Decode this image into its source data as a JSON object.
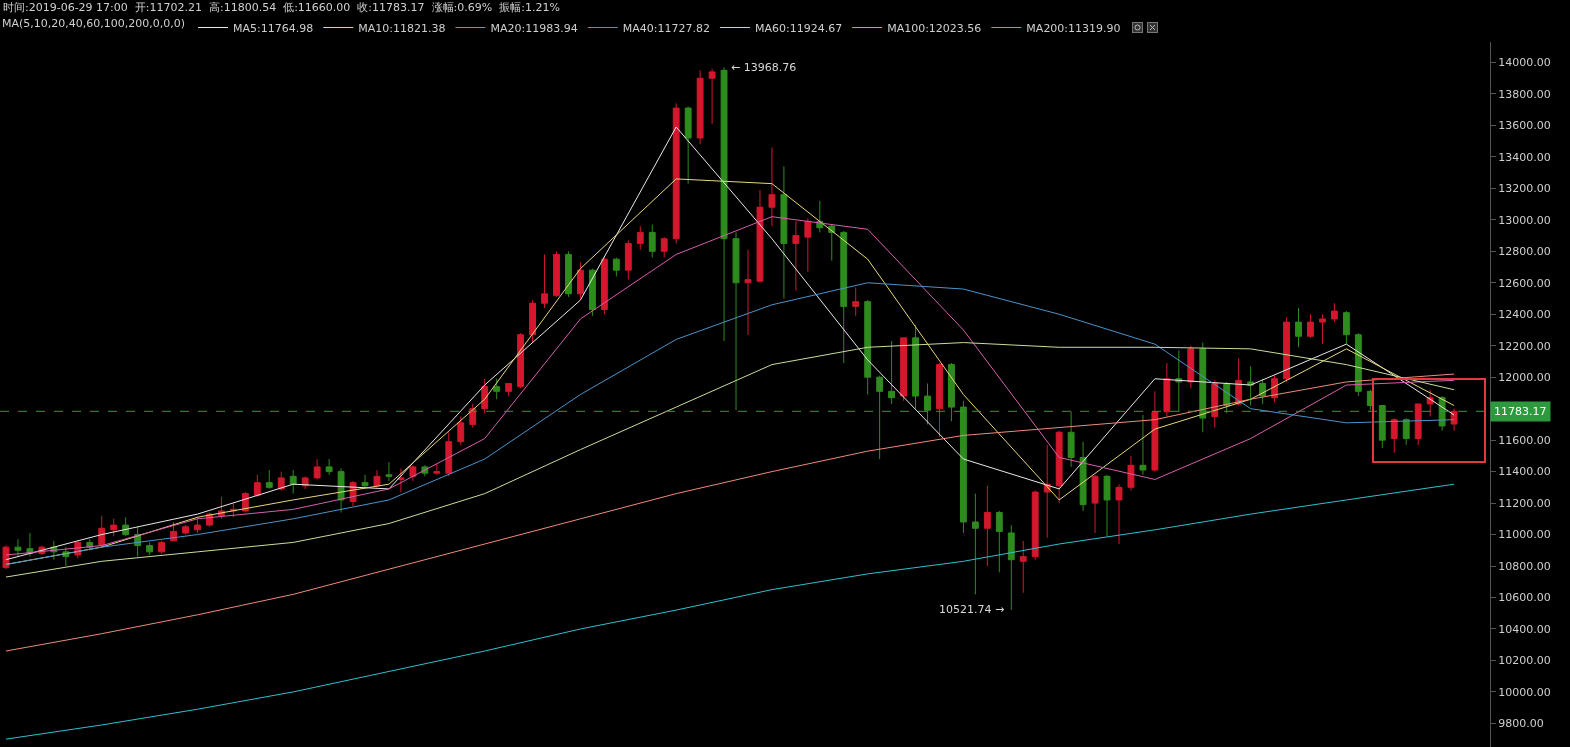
{
  "chart_data": {
    "type": "candlestick",
    "title": "时间:2019-06-29 17:00  开:11702.21  高:11800.54  低:11660.00  收:11783.17  涨幅:0.69%  振幅:1.21%",
    "legend_title": "MA(5,10,20,40,60,100,200,0,0,0)",
    "legend": "top left",
    "tick_labels": "y",
    "categories": [
      null,
      null,
      null,
      null,
      null,
      null,
      null,
      null,
      null,
      null,
      null,
      null,
      null,
      null,
      null,
      null,
      null,
      null,
      null,
      null,
      null,
      null,
      null,
      null,
      null,
      null,
      null,
      null,
      null,
      null,
      null,
      null,
      null,
      null,
      null,
      null,
      null,
      null,
      null,
      null,
      null,
      null,
      null,
      null,
      null,
      null,
      null,
      null,
      null,
      null,
      null,
      null,
      null,
      null,
      null,
      null,
      null,
      null,
      null,
      null,
      null,
      null,
      null,
      null,
      null,
      null,
      null,
      null,
      null,
      null,
      null,
      null,
      null,
      null,
      null,
      null,
      null,
      null,
      null,
      null,
      null,
      null,
      null,
      null,
      null,
      null,
      null,
      null,
      null,
      null,
      null,
      null,
      null,
      null,
      null,
      null,
      null,
      null,
      null,
      null,
      null,
      null,
      null,
      null,
      null,
      null,
      null,
      null,
      null,
      null,
      null,
      null,
      null,
      null,
      null,
      null,
      null,
      null,
      null,
      null,
      null,
      null
    ],
    "colors": [
      "#d3172d",
      "#2e8c1e",
      "#2e8c1e",
      "#d3172d",
      "#2e8c1e",
      "#2e8c1e",
      "#d3172d",
      "#2e8c1e",
      "#d3172d",
      "#d3172d",
      "#2e8c1e",
      "#2e8c1e",
      "#2e8c1e",
      "#d3172d",
      "#d3172d",
      "#d3172d",
      "#d3172d",
      "#d3172d",
      "#d3172d",
      "#d3172d",
      "#d3172d",
      "#d3172d",
      "#2e8c1e",
      "#d3172d",
      "#2e8c1e",
      "#d3172d",
      "#d3172d",
      "#2e8c1e",
      "#2e8c1e",
      "#d3172d",
      "#2e8c1e",
      "#d3172d",
      "#2e8c1e",
      "#d3172d",
      "#d3172d",
      "#2e8c1e",
      "#d3172d",
      "#d3172d",
      "#d3172d",
      "#d3172d",
      "#d3172d",
      "#2e8c1e",
      "#d3172d",
      "#d3172d",
      "#d3172d",
      "#d3172d",
      "#d3172d",
      "#2e8c1e",
      "#d3172d",
      "#2e8c1e",
      "#d3172d",
      "#2e8c1e",
      "#d3172d",
      "#d3172d",
      "#2e8c1e",
      "#d3172d",
      "#d3172d",
      "#2e8c1e",
      "#d3172d",
      "#d3172d",
      "#2e8c1e",
      "#2e8c1e",
      "#d3172d",
      "#d3172d",
      "#d3172d",
      "#2e8c1e",
      "#d3172d",
      "#d3172d",
      "#2e8c1e",
      "#2e8c1e",
      "#2e8c1e",
      "#d3172d",
      "#2e8c1e",
      "#2e8c1e",
      "#2e8c1e",
      "#d3172d",
      "#2e8c1e",
      "#2e8c1e",
      "#d3172d",
      "#2e8c1e",
      "#2e8c1e",
      "#2e8c1e",
      "#d3172d",
      "#2e8c1e",
      "#2e8c1e",
      "#d3172d",
      "#d3172d",
      "#d3172d",
      "#d3172d",
      "#2e8c1e",
      "#2e8c1e",
      "#d3172d",
      "#2e8c1e",
      "#d3172d",
      "#d3172d",
      "#2e8c1e",
      "#d3172d",
      "#d3172d",
      "#2e8c1e",
      "#d3172d",
      "#2e8c1e",
      "#d3172d",
      "#2e8c1e",
      "#d3172d",
      "#2e8c1e",
      "#2e8c1e",
      "#d3172d",
      "#d3172d",
      "#2e8c1e",
      "#d3172d",
      "#d3172d",
      "#d3172d",
      "#2e8c1e",
      "#2e8c1e",
      "#2e8c1e",
      "#2e8c1e",
      "#d3172d",
      "#2e8c1e",
      "#d3172d",
      "#d3172d",
      "#2e8c1e",
      "#d3172d"
    ],
    "ohlc": [
      [
        10790,
        10930,
        10780,
        10920
      ],
      [
        10920,
        10970,
        10860,
        10900
      ],
      [
        10910,
        11010,
        10860,
        10880
      ],
      [
        10880,
        10930,
        10870,
        10920
      ],
      [
        10920,
        10960,
        10840,
        10890
      ],
      [
        10890,
        10920,
        10800,
        10860
      ],
      [
        10870,
        10960,
        10850,
        10950
      ],
      [
        10950,
        10970,
        10900,
        10920
      ],
      [
        10930,
        11120,
        10920,
        11040
      ],
      [
        11030,
        11100,
        10990,
        11060
      ],
      [
        11060,
        11110,
        10990,
        11000
      ],
      [
        11000,
        11050,
        10860,
        10930
      ],
      [
        10930,
        10950,
        10870,
        10890
      ],
      [
        10890,
        10960,
        10880,
        10950
      ],
      [
        10960,
        11080,
        10960,
        11020
      ],
      [
        11010,
        11060,
        11000,
        11050
      ],
      [
        11030,
        11110,
        11010,
        11060
      ],
      [
        11060,
        11140,
        11050,
        11130
      ],
      [
        11120,
        11240,
        11100,
        11150
      ],
      [
        11150,
        11200,
        11110,
        11160
      ],
      [
        11150,
        11270,
        11140,
        11260
      ],
      [
        11250,
        11380,
        11240,
        11330
      ],
      [
        11330,
        11410,
        11290,
        11300
      ],
      [
        11290,
        11400,
        11280,
        11360
      ],
      [
        11370,
        11410,
        11260,
        11320
      ],
      [
        11310,
        11370,
        11290,
        11360
      ],
      [
        11360,
        11480,
        11350,
        11430
      ],
      [
        11430,
        11480,
        11380,
        11400
      ],
      [
        11400,
        11420,
        11140,
        11220
      ],
      [
        11210,
        11340,
        11180,
        11330
      ],
      [
        11330,
        11380,
        11290,
        11310
      ],
      [
        11310,
        11410,
        11300,
        11370
      ],
      [
        11380,
        11460,
        11340,
        11370
      ],
      [
        11350,
        11420,
        11270,
        11360
      ],
      [
        11370,
        11440,
        11340,
        11430
      ],
      [
        11430,
        11440,
        11370,
        11390
      ],
      [
        11390,
        11450,
        11380,
        11400
      ],
      [
        11390,
        11650,
        11370,
        11590
      ],
      [
        11590,
        11750,
        11570,
        11710
      ],
      [
        11700,
        11830,
        11680,
        11800
      ],
      [
        11800,
        11990,
        11770,
        11940
      ],
      [
        11940,
        11990,
        11860,
        11910
      ],
      [
        11910,
        11960,
        11880,
        11960
      ],
      [
        11940,
        12280,
        11930,
        12270
      ],
      [
        12270,
        12490,
        12220,
        12470
      ],
      [
        12470,
        12780,
        12440,
        12530
      ],
      [
        12520,
        12800,
        12510,
        12780
      ],
      [
        12780,
        12800,
        12510,
        12530
      ],
      [
        12530,
        12730,
        12500,
        12680
      ],
      [
        12680,
        12690,
        12390,
        12430
      ],
      [
        12430,
        12760,
        12400,
        12750
      ],
      [
        12750,
        12760,
        12640,
        12680
      ],
      [
        12680,
        12870,
        12620,
        12850
      ],
      [
        12850,
        12960,
        12810,
        12920
      ],
      [
        12920,
        12970,
        12760,
        12800
      ],
      [
        12800,
        12890,
        12760,
        12880
      ],
      [
        12880,
        13740,
        12850,
        13710
      ],
      [
        13710,
        13720,
        13230,
        13520
      ],
      [
        13520,
        13950,
        13480,
        13900
      ],
      [
        13900,
        13960,
        13610,
        13940
      ],
      [
        13950,
        13968.76,
        12230,
        12880
      ],
      [
        12880,
        12920,
        11790,
        12600
      ],
      [
        12600,
        12810,
        12270,
        12620
      ],
      [
        12610,
        13190,
        12600,
        13080
      ],
      [
        13080,
        13460,
        12960,
        13160
      ],
      [
        13160,
        13340,
        12500,
        12850
      ],
      [
        12850,
        12990,
        12550,
        12900
      ],
      [
        12890,
        13010,
        12670,
        12990
      ],
      [
        12990,
        13120,
        12920,
        12950
      ],
      [
        12960,
        12970,
        12740,
        12920
      ],
      [
        12920,
        12930,
        12090,
        12450
      ],
      [
        12450,
        12570,
        12390,
        12480
      ],
      [
        12480,
        12490,
        11890,
        12000
      ],
      [
        12000,
        12010,
        11480,
        11910
      ],
      [
        11910,
        12230,
        11830,
        11870
      ],
      [
        11880,
        12250,
        11850,
        12250
      ],
      [
        12250,
        12330,
        11800,
        11880
      ],
      [
        11880,
        11960,
        11700,
        11790
      ],
      [
        11800,
        12090,
        11620,
        12080
      ],
      [
        12080,
        12090,
        11720,
        11810
      ],
      [
        11810,
        11850,
        11010,
        11080
      ],
      [
        11080,
        11260,
        10620,
        11040
      ],
      [
        11040,
        11310,
        10800,
        11140
      ],
      [
        11140,
        11150,
        10760,
        11020
      ],
      [
        11010,
        11060,
        10521.74,
        10840
      ],
      [
        10830,
        10960,
        10630,
        10860
      ],
      [
        10860,
        11280,
        10840,
        11270
      ],
      [
        11270,
        11570,
        10980,
        11320
      ],
      [
        11310,
        11660,
        11200,
        11650
      ],
      [
        11650,
        11780,
        11430,
        11490
      ],
      [
        11490,
        11590,
        11150,
        11190
      ],
      [
        11200,
        11380,
        11010,
        11370
      ],
      [
        11370,
        11380,
        10990,
        11220
      ],
      [
        11220,
        11320,
        10940,
        11300
      ],
      [
        11300,
        11500,
        11280,
        11440
      ],
      [
        11440,
        11760,
        11380,
        11410
      ],
      [
        11410,
        11910,
        11400,
        11780
      ],
      [
        11780,
        12090,
        11750,
        11990
      ],
      [
        11990,
        12170,
        11780,
        11970
      ],
      [
        11970,
        12200,
        11930,
        12180
      ],
      [
        12180,
        12220,
        11650,
        11740
      ],
      [
        11750,
        11980,
        11680,
        11960
      ],
      [
        11960,
        11970,
        11770,
        11820
      ],
      [
        11830,
        12120,
        11820,
        11980
      ],
      [
        11970,
        12070,
        11820,
        11950
      ],
      [
        11960,
        11990,
        11830,
        11880
      ],
      [
        11870,
        12010,
        11840,
        11990
      ],
      [
        11990,
        12380,
        11970,
        12350
      ],
      [
        12350,
        12440,
        12190,
        12260
      ],
      [
        12260,
        12400,
        12250,
        12350
      ],
      [
        12350,
        12400,
        12210,
        12370
      ],
      [
        12370,
        12470,
        12350,
        12420
      ],
      [
        12410,
        12420,
        12210,
        12270
      ],
      [
        12270,
        12280,
        11880,
        11910
      ],
      [
        11910,
        11920,
        11790,
        11820
      ],
      [
        11820,
        11820,
        11550,
        11600
      ],
      [
        11610,
        11740,
        11520,
        11730
      ],
      [
        11730,
        11740,
        11570,
        11610
      ],
      [
        11610,
        11830,
        11570,
        11830
      ],
      [
        11830,
        11920,
        11750,
        11870
      ],
      [
        11870,
        11880,
        11660,
        11690
      ],
      [
        11702.21,
        11800.54,
        11660.0,
        11783.17
      ]
    ],
    "series": [
      {
        "type": "line",
        "name": "MA5:11764.98",
        "color": "#e8e8e8",
        "values": [
          10840,
          null,
          null,
          null,
          null,
          null,
          null,
          null,
          11000,
          null,
          null,
          null,
          null,
          null,
          null,
          null,
          11130,
          null,
          null,
          null,
          null,
          null,
          null,
          null,
          11320,
          null,
          null,
          null,
          null,
          null,
          null,
          null,
          11290,
          null,
          null,
          null,
          null,
          null,
          null,
          null,
          11950,
          null,
          null,
          null,
          null,
          null,
          null,
          null,
          12490,
          null,
          null,
          null,
          null,
          null,
          null,
          null,
          13590,
          null,
          null,
          null,
          null,
          null,
          null,
          null,
          12880,
          null,
          null,
          null,
          null,
          null,
          null,
          null,
          12110,
          null,
          null,
          null,
          null,
          null,
          null,
          null,
          11480,
          null,
          null,
          null,
          null,
          null,
          null,
          null,
          11290,
          null,
          null,
          null,
          null,
          null,
          null,
          null,
          11990,
          null,
          null,
          null,
          null,
          null,
          null,
          null,
          11950,
          null,
          null,
          null,
          null,
          null,
          null,
          null,
          12210,
          null,
          null,
          null,
          null,
          null,
          null,
          null,
          null,
          11760
        ]
      },
      {
        "type": "line",
        "name": "MA10:11821.38",
        "color": "#e6d77a",
        "values": [
          10810,
          null,
          null,
          null,
          null,
          null,
          null,
          null,
          10920,
          null,
          null,
          null,
          null,
          null,
          null,
          null,
          11110,
          null,
          null,
          null,
          null,
          null,
          null,
          null,
          11220,
          null,
          null,
          null,
          null,
          null,
          null,
          null,
          11320,
          null,
          null,
          null,
          null,
          null,
          null,
          null,
          11860,
          null,
          null,
          null,
          null,
          null,
          null,
          null,
          12690,
          null,
          null,
          null,
          null,
          null,
          null,
          null,
          13260,
          null,
          null,
          null,
          null,
          null,
          null,
          null,
          13230,
          null,
          null,
          null,
          null,
          null,
          null,
          null,
          12750,
          null,
          null,
          null,
          null,
          null,
          null,
          null,
          11890,
          null,
          null,
          null,
          null,
          null,
          null,
          null,
          11220,
          null,
          null,
          null,
          null,
          null,
          null,
          null,
          11670,
          null,
          null,
          null,
          null,
          null,
          null,
          null,
          11860,
          null,
          null,
          null,
          null,
          null,
          null,
          null,
          12180,
          null,
          null,
          null,
          null,
          null,
          null,
          null,
          null,
          11820
        ]
      },
      {
        "type": "line",
        "name": "MA20:11983.94",
        "color": "#d45fae",
        "values": [
          10870,
          null,
          null,
          null,
          null,
          null,
          null,
          null,
          10930,
          null,
          null,
          null,
          null,
          null,
          null,
          null,
          11100,
          null,
          null,
          null,
          null,
          null,
          null,
          null,
          11160,
          null,
          null,
          null,
          null,
          null,
          null,
          null,
          11290,
          null,
          null,
          null,
          null,
          null,
          null,
          null,
          11610,
          null,
          null,
          null,
          null,
          null,
          null,
          null,
          12370,
          null,
          null,
          null,
          null,
          null,
          null,
          null,
          12780,
          null,
          null,
          null,
          null,
          null,
          null,
          null,
          13020,
          null,
          null,
          null,
          null,
          null,
          null,
          null,
          12940,
          null,
          null,
          null,
          null,
          null,
          null,
          null,
          12300,
          null,
          null,
          null,
          null,
          null,
          null,
          null,
          11490,
          null,
          null,
          null,
          null,
          null,
          null,
          null,
          11350,
          null,
          null,
          null,
          null,
          null,
          null,
          null,
          11610,
          null,
          null,
          null,
          null,
          null,
          null,
          null,
          11950,
          null,
          null,
          null,
          null,
          null,
          null,
          null,
          null,
          11980
        ]
      },
      {
        "type": "line",
        "name": "MA40:11727.82",
        "color": "#4b93c9",
        "values": [
          10810,
          null,
          null,
          null,
          null,
          null,
          null,
          null,
          10920,
          null,
          null,
          null,
          null,
          null,
          null,
          null,
          11000,
          null,
          null,
          null,
          null,
          null,
          null,
          null,
          11100,
          null,
          null,
          null,
          null,
          null,
          null,
          null,
          11220,
          null,
          null,
          null,
          null,
          null,
          null,
          null,
          11480,
          null,
          null,
          null,
          null,
          null,
          null,
          null,
          11890,
          null,
          null,
          null,
          null,
          null,
          null,
          null,
          12240,
          null,
          null,
          null,
          null,
          null,
          null,
          null,
          12460,
          null,
          null,
          null,
          null,
          null,
          null,
          null,
          12600,
          null,
          null,
          null,
          null,
          null,
          null,
          null,
          12560,
          null,
          null,
          null,
          null,
          null,
          null,
          null,
          12400,
          null,
          null,
          null,
          null,
          null,
          null,
          null,
          12210,
          null,
          null,
          null,
          null,
          null,
          null,
          null,
          11800,
          null,
          null,
          null,
          null,
          null,
          null,
          null,
          11710,
          null,
          null,
          null,
          null,
          null,
          null,
          null,
          null,
          11730
        ]
      },
      {
        "type": "line",
        "name": "MA60:11924.67",
        "color": "#c9dd9a",
        "values": [
          10730,
          null,
          null,
          null,
          null,
          null,
          null,
          null,
          10830,
          null,
          null,
          null,
          null,
          null,
          null,
          null,
          10890,
          null,
          null,
          null,
          null,
          null,
          null,
          null,
          10950,
          null,
          null,
          null,
          null,
          null,
          null,
          null,
          11070,
          null,
          null,
          null,
          null,
          null,
          null,
          null,
          11260,
          null,
          null,
          null,
          null,
          null,
          null,
          null,
          11540,
          null,
          null,
          null,
          null,
          null,
          null,
          null,
          11810,
          null,
          null,
          null,
          null,
          null,
          null,
          null,
          12080,
          null,
          null,
          null,
          null,
          null,
          null,
          null,
          12190,
          null,
          null,
          null,
          null,
          null,
          null,
          null,
          12220,
          null,
          null,
          null,
          null,
          null,
          null,
          null,
          12190,
          null,
          null,
          null,
          null,
          null,
          null,
          null,
          12190,
          null,
          null,
          null,
          null,
          null,
          null,
          null,
          12180,
          null,
          null,
          null,
          null,
          null,
          null,
          null,
          12080,
          null,
          null,
          null,
          null,
          null,
          null,
          null,
          null,
          11920
        ]
      },
      {
        "type": "line",
        "name": "MA100:12023.56",
        "color": "#ee8a78",
        "values": [
          10260,
          null,
          null,
          null,
          null,
          null,
          null,
          null,
          10370,
          null,
          null,
          null,
          null,
          null,
          null,
          null,
          10490,
          null,
          null,
          null,
          null,
          null,
          null,
          null,
          10620,
          null,
          null,
          null,
          null,
          null,
          null,
          null,
          10780,
          null,
          null,
          null,
          null,
          null,
          null,
          null,
          10940,
          null,
          null,
          null,
          null,
          null,
          null,
          null,
          11100,
          null,
          null,
          null,
          null,
          null,
          null,
          null,
          11260,
          null,
          null,
          null,
          null,
          null,
          null,
          null,
          11400,
          null,
          null,
          null,
          null,
          null,
          null,
          null,
          11530,
          null,
          null,
          null,
          null,
          null,
          null,
          null,
          11630,
          null,
          null,
          null,
          null,
          null,
          null,
          null,
          11680,
          null,
          null,
          null,
          null,
          null,
          null,
          null,
          11730,
          null,
          null,
          null,
          null,
          null,
          null,
          null,
          11860,
          null,
          null,
          null,
          null,
          null,
          null,
          null,
          11970,
          null,
          null,
          null,
          null,
          null,
          null,
          null,
          null,
          12020
        ]
      },
      {
        "type": "line",
        "name": "MA200:11319.90",
        "color": "#2fbfcf",
        "values": [
          9700,
          null,
          null,
          null,
          null,
          null,
          null,
          null,
          9790,
          null,
          null,
          null,
          null,
          null,
          null,
          null,
          9890,
          null,
          null,
          null,
          null,
          null,
          null,
          null,
          10000,
          null,
          null,
          null,
          null,
          null,
          null,
          null,
          10130,
          null,
          null,
          null,
          null,
          null,
          null,
          null,
          10260,
          null,
          null,
          null,
          null,
          null,
          null,
          null,
          10400,
          null,
          null,
          null,
          null,
          null,
          null,
          null,
          10520,
          null,
          null,
          null,
          null,
          null,
          null,
          null,
          10650,
          null,
          null,
          null,
          null,
          null,
          null,
          null,
          10750,
          null,
          null,
          null,
          null,
          null,
          null,
          null,
          10830,
          null,
          null,
          null,
          null,
          null,
          null,
          null,
          10940,
          null,
          null,
          null,
          null,
          null,
          null,
          null,
          11030,
          null,
          null,
          null,
          null,
          null,
          null,
          null,
          11130,
          null,
          null,
          null,
          null,
          null,
          null,
          null,
          11220,
          null,
          null,
          null,
          null,
          null,
          null,
          null,
          null,
          11320
        ]
      }
    ],
    "ylim": [
      9650,
      14130
    ],
    "yticks": [
      {
        "value": 9800,
        "label": "9800.00"
      },
      {
        "value": 10000,
        "label": "10000.00"
      },
      {
        "value": 10200,
        "label": "10200.00"
      },
      {
        "value": 10400,
        "label": "10400.00"
      },
      {
        "value": 10600,
        "label": "10600.00"
      },
      {
        "value": 10800,
        "label": "10800.00"
      },
      {
        "value": 11000,
        "label": "11000.00"
      },
      {
        "value": 11200,
        "label": "11200.00"
      },
      {
        "value": 11400,
        "label": "11400.00"
      },
      {
        "value": 11600,
        "label": "11600.00"
      },
      {
        "value": 11800,
        "label": null
      },
      {
        "value": 12000,
        "label": "12000.00"
      },
      {
        "value": 12200,
        "label": "12200.00"
      },
      {
        "value": 12400,
        "label": "12400.00"
      },
      {
        "value": 12600,
        "label": "12600.00"
      },
      {
        "value": 12800,
        "label": "12800.00"
      },
      {
        "value": 13000,
        "label": "13000.00"
      },
      {
        "value": 13200,
        "label": "13200.00"
      },
      {
        "value": 13400,
        "label": "13400.00"
      },
      {
        "value": 13600,
        "label": "13600.00"
      },
      {
        "value": 13800,
        "label": "13800.00"
      },
      {
        "value": 14000,
        "label": "14000.00"
      }
    ],
    "ref_lines": [
      {
        "axis": "y",
        "value": 11783.17,
        "label": "11783.17",
        "color": "#2e9a3e",
        "line_style": "dashed"
      }
    ],
    "annotations": [
      "← 13968.76",
      "10521.74 →"
    ]
  }
}
